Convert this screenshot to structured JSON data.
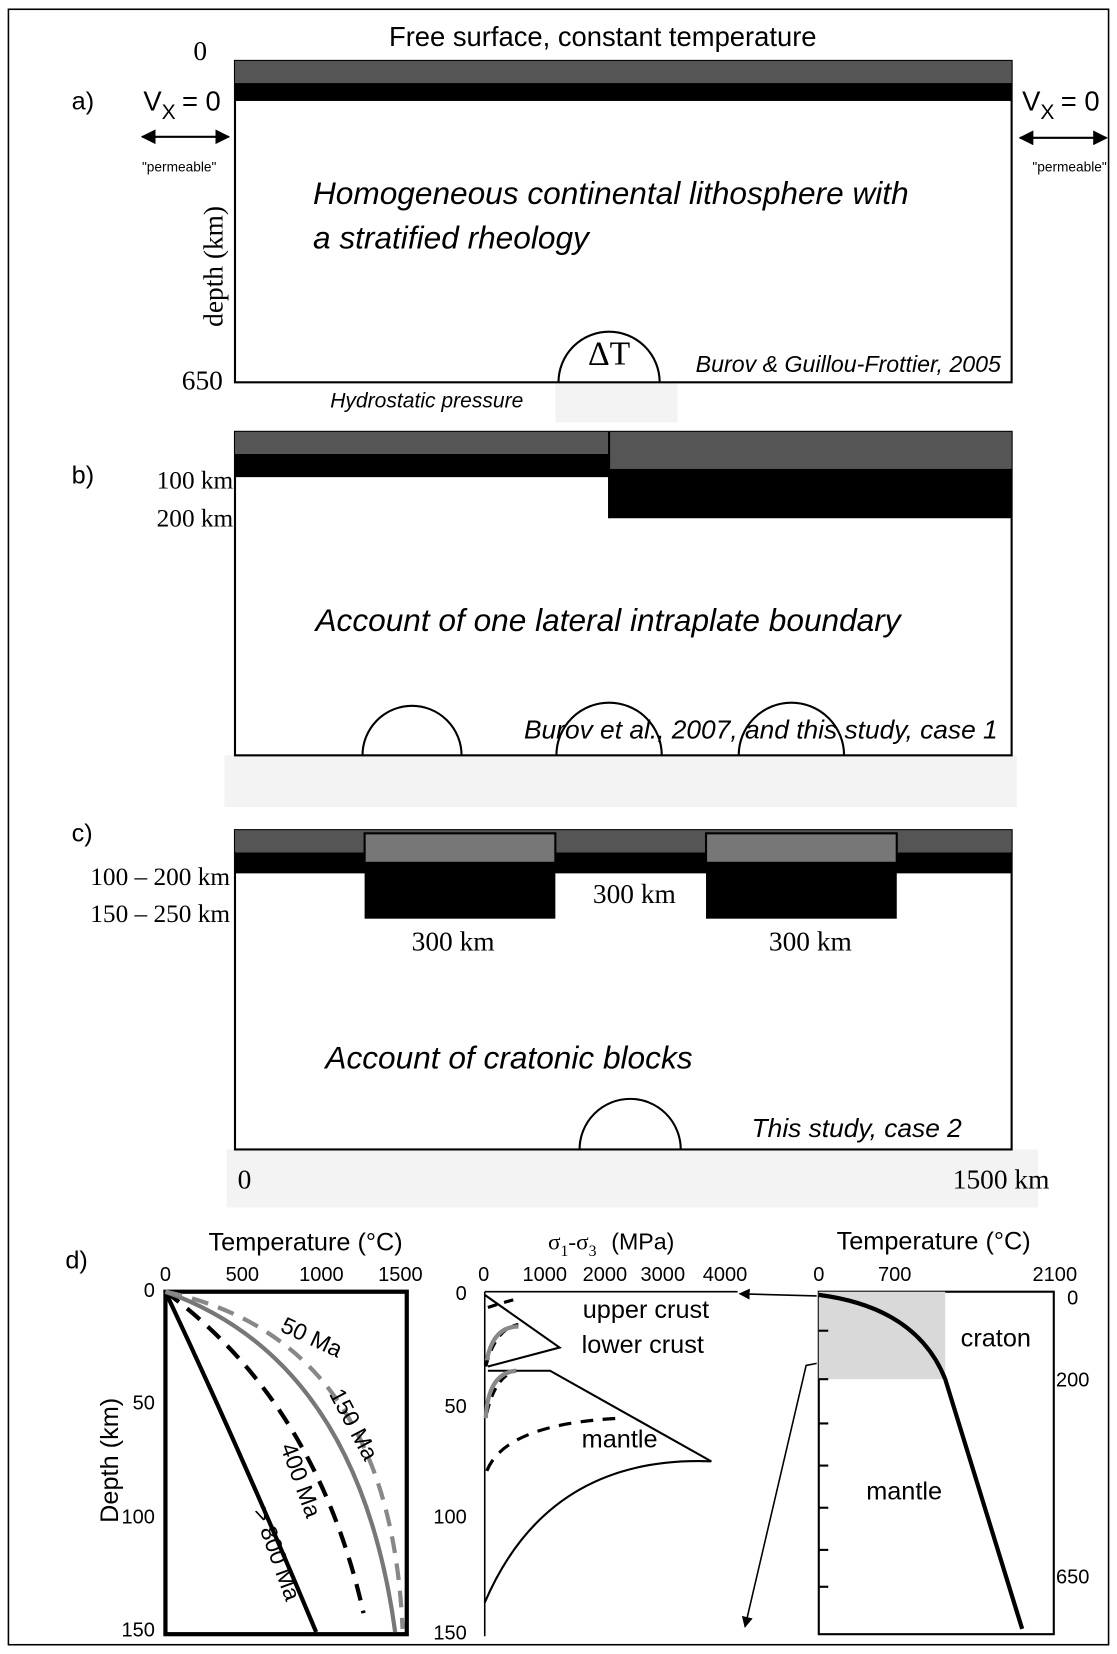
{
  "panels": {
    "a": {
      "label": "a)",
      "surface": "Free surface, constant temperature",
      "depth_top": "0",
      "depth_bottom": "650",
      "depth_axis": "depth (km)",
      "bc_v": "V",
      "bc_sub": "X",
      "bc_eq": "= 0",
      "permeable": "\"permeable\"",
      "text_line1": "Homogeneous continental lithosphere with",
      "text_line2": "a stratified rheology",
      "delta_t": "ΔT",
      "citation": "Burov & Guillou-Frottier, 2005",
      "bottom": "Hydrostatic pressure"
    },
    "b": {
      "label": "b)",
      "depth1": "100 km",
      "depth2": "200 km",
      "text": "Account of one lateral intraplate boundary",
      "citation": "Burov et al., 2007, and this study, case 1"
    },
    "c": {
      "label": "c)",
      "depth1": "100 – 200 km",
      "depth2": "150 – 250 km",
      "width_mid": "300 km",
      "width_left": "300 km",
      "width_right": "300 km",
      "text": "Account of cratonic blocks",
      "citation": "This study, case 2",
      "x_start": "0",
      "x_end": "1500  km"
    },
    "d": {
      "label": "d)",
      "temperature": {
        "title": "Temperature  (°C)",
        "xticks": [
          "0",
          "500",
          "1000",
          "1500"
        ],
        "ylabel": "Depth  (km)",
        "yticks": [
          "0",
          "50",
          "100",
          "150"
        ],
        "curves": [
          "50 Ma",
          "150 Ma",
          "400 Ma",
          "> 800 Ma"
        ]
      },
      "strength": {
        "title_s1": "σ",
        "title_sub1": "1",
        "title_s3": "-σ",
        "title_sub3": "3",
        "title_unit": "(MPa)",
        "xticks": [
          "0",
          "1000",
          "2000",
          "3000",
          "4000"
        ],
        "yticks": [
          "0",
          "50",
          "100",
          "150"
        ],
        "labels": [
          "upper crust",
          "lower crust",
          "mantle"
        ]
      },
      "profile": {
        "title": "Temperature  (°C)",
        "xticks": [
          "0",
          "700",
          "2100"
        ],
        "yticks": [
          "0",
          "200",
          "650"
        ],
        "labels": [
          "craton",
          "mantle"
        ]
      }
    }
  }
}
